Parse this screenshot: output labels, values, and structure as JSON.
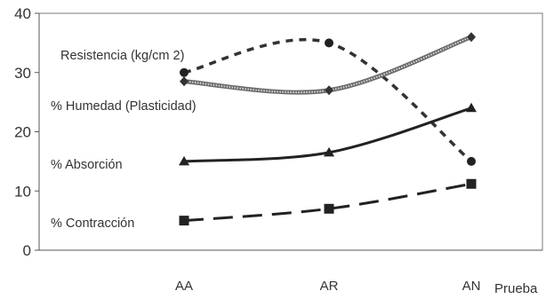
{
  "chart_data": {
    "type": "line",
    "categories": [
      "AA",
      "AR",
      "AN"
    ],
    "xlabel": "Prueba",
    "ylabel": "",
    "title": "",
    "ylim": [
      0,
      40
    ],
    "yticks": [
      "0",
      "10",
      "20",
      "30",
      "40"
    ],
    "grid": false,
    "legend": "inline-labels",
    "series": [
      {
        "name": "Resistencia (kg/cm 2)",
        "values": [
          30,
          35,
          15
        ],
        "style": "dotted",
        "marker": "circle",
        "color": "#333333"
      },
      {
        "name": "%  Humedad (Plasticidad)",
        "values": [
          28.5,
          27,
          36
        ],
        "style": "textured",
        "marker": "diamond",
        "color": "#555555"
      },
      {
        "name": "% Absorción",
        "values": [
          15,
          16.5,
          24
        ],
        "style": "solid",
        "marker": "triangle",
        "color": "#222222"
      },
      {
        "name": "% Contracción",
        "values": [
          5,
          7,
          11.2
        ],
        "style": "dashed",
        "marker": "square",
        "color": "#222222"
      }
    ]
  }
}
